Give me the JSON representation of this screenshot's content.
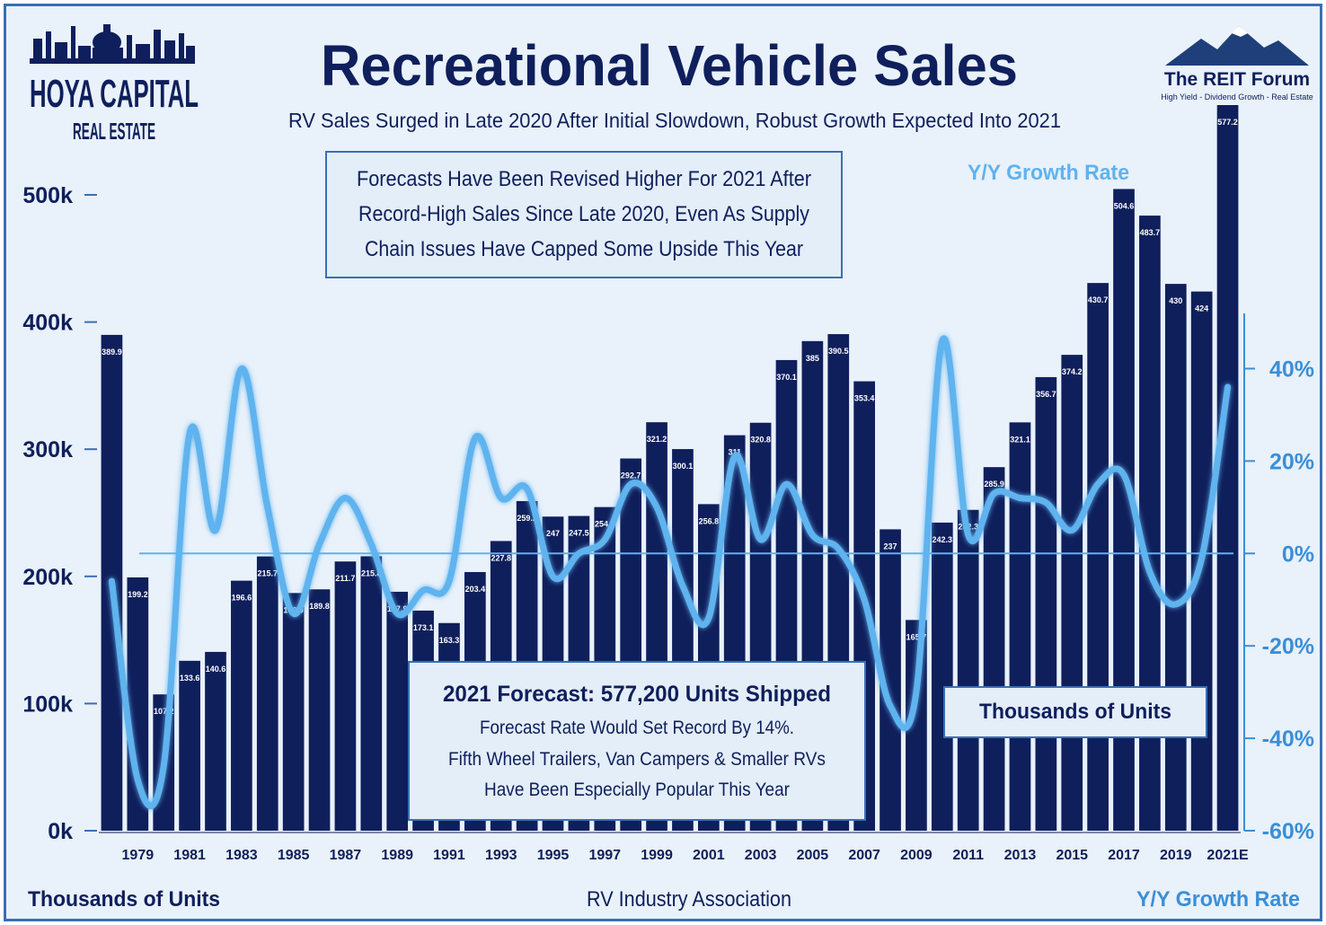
{
  "chart_data": {
    "type": "bar",
    "title": "Recreational Vehicle Sales",
    "subtitle": "RV Sales Surged in Late 2020 After Initial Slowdown, Robust Growth Expected Into 2021",
    "categories": [
      "1978",
      "1979",
      "1980",
      "1981",
      "1982",
      "1983",
      "1984",
      "1985",
      "1986",
      "1987",
      "1988",
      "1989",
      "1990",
      "1991",
      "1992",
      "1993",
      "1994",
      "1995",
      "1996",
      "1997",
      "1998",
      "1999",
      "2000",
      "2001",
      "2002",
      "2003",
      "2004",
      "2005",
      "2006",
      "2007",
      "2008",
      "2009",
      "2010",
      "2011",
      "2012",
      "2013",
      "2014",
      "2015",
      "2016",
      "2017",
      "2018",
      "2019",
      "2020",
      "2021E"
    ],
    "tick_labels": [
      "1979",
      "1981",
      "1983",
      "1985",
      "1987",
      "1989",
      "1991",
      "1993",
      "1995",
      "1997",
      "1999",
      "2001",
      "2003",
      "2005",
      "2007",
      "2009",
      "2011",
      "2013",
      "2015",
      "2017",
      "2019",
      "2021E"
    ],
    "series": [
      {
        "name": "Thousands of Units",
        "axis": "left",
        "values": [
          389.9,
          199.2,
          107.2,
          133.6,
          140.6,
          196.6,
          215.7,
          186.9,
          189.8,
          211.7,
          215.8,
          187.9,
          173.1,
          163.3,
          203.4,
          227.8,
          259.2,
          247,
          247.5,
          254.5,
          292.7,
          321.2,
          300.1,
          256.8,
          311,
          320.8,
          370.1,
          385,
          390.5,
          353.4,
          237,
          165.7,
          242.3,
          252.3,
          285.9,
          321.1,
          356.7,
          374.2,
          430.7,
          504.6,
          483.7,
          430,
          424,
          577.2
        ],
        "value_labels": [
          "389.9",
          "199.2",
          "107.2",
          "133.6",
          "140.6",
          "196.6",
          "215.7",
          "186.9",
          "189.8",
          "211.7",
          "215.8",
          "187.9",
          "173.1",
          "163.3",
          "203.4",
          "227.8",
          "259.2",
          "247",
          "247.5",
          "254.5",
          "292.7",
          "321.2",
          "300.1",
          "256.8",
          "311",
          "320.8",
          "370.1",
          "385",
          "390.5",
          "353.4",
          "237",
          "165.7",
          "242.3",
          "252.3",
          "285.9",
          "321.1",
          "356.7",
          "374.2",
          "430.7",
          "504.6",
          "483.7",
          "430",
          "424",
          "577.2"
        ],
        "color": "#0f1f5c"
      },
      {
        "name": "Y/Y Growth Rate",
        "axis": "right",
        "type": "line",
        "x": [
          "1978",
          "1979",
          "1980",
          "1981",
          "1982",
          "1983",
          "1984",
          "1985",
          "1986",
          "1987",
          "1988",
          "1989",
          "1990",
          "1991",
          "1992",
          "1993",
          "1994",
          "1995",
          "1996",
          "1997",
          "1998",
          "1999",
          "2000",
          "2001",
          "2002",
          "2003",
          "2004",
          "2005",
          "2006",
          "2007",
          "2008",
          "2009",
          "2010",
          "2011",
          "2012",
          "2013",
          "2014",
          "2015",
          "2016",
          "2017",
          "2018",
          "2019",
          "2020",
          "2021E"
        ],
        "values": [
          -6,
          -49,
          -46,
          26,
          5,
          40,
          10,
          -13,
          2,
          12,
          2,
          -13,
          -8,
          -6,
          25,
          12,
          14,
          -5,
          0,
          3,
          15,
          10,
          -7,
          -14,
          21,
          3,
          15,
          4,
          1,
          -10,
          -33,
          -30,
          46,
          4,
          13,
          12,
          11,
          5,
          15,
          17,
          -4,
          -11,
          -1,
          36
        ],
        "color": "#5fb3ee"
      }
    ],
    "left_axis": {
      "ylim": [
        0,
        550
      ],
      "tick_values": [
        0,
        100,
        200,
        300,
        400,
        500
      ],
      "tick_labels": [
        "0k",
        "100k",
        "200k",
        "300k",
        "400k",
        "500k"
      ],
      "label": "Thousands of Units"
    },
    "right_axis": {
      "ylim": [
        -60,
        50
      ],
      "tick_values": [
        -60,
        -40,
        -20,
        0,
        20,
        40
      ],
      "tick_labels": [
        "-60%",
        "-40%",
        "-20%",
        "0%",
        "20%",
        "40%"
      ],
      "label": "Y/Y Growth Rate"
    },
    "zero_line": true,
    "grid": false,
    "source": "RV Industry Association"
  },
  "annotations": {
    "top_box_lines": [
      "Forecasts Have Been Revised Higher For 2021 After",
      "Record-High Sales Since Late 2020, Even As Supply",
      "Chain Issues Have Capped Some Upside This Year"
    ],
    "forecast_title": "2021 Forecast: 577,200 Units Shipped",
    "forecast_lines": [
      "Forecast Rate Would Set Record By 14%.",
      "Fifth Wheel Trailers, Van Campers & Smaller RVs",
      "Have Been Especially Popular This Year"
    ],
    "units_box": "Thousands of Units",
    "growth_label": "Y/Y Growth Rate"
  },
  "logos": {
    "left_line1": "HOYA CAPITAL",
    "left_line2": "REAL ESTATE",
    "right_name": "The REIT Forum",
    "right_tagline": "High Yield - Dividend Growth - Real Estate"
  },
  "colors": {
    "bar": "#0f1f5c",
    "line": "#5fb3ee",
    "accent": "#3a6fb3",
    "background": "#e9f1fa",
    "text_dark": "#0f1f5c"
  }
}
